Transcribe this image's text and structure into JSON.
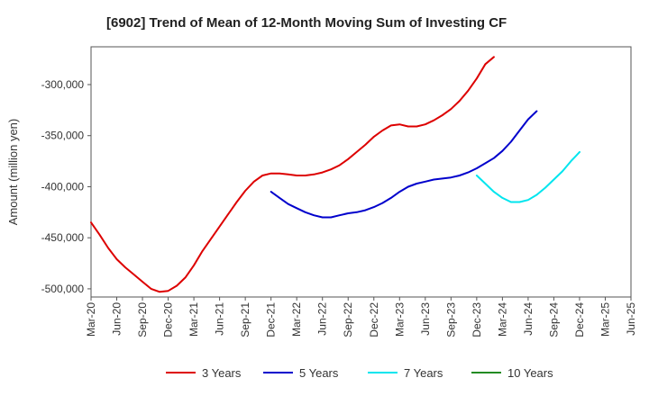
{
  "chart_data": {
    "type": "line",
    "title": "[6902]  Trend of Mean of 12-Month Moving Sum of Investing CF",
    "xlabel": "",
    "ylabel": "Amount (million yen)",
    "ylim": [
      -508000,
      -263000
    ],
    "yticks": [
      -500000,
      -450000,
      -400000,
      -350000,
      -300000
    ],
    "ytick_labels": [
      "-500,000",
      "-450,000",
      "-400,000",
      "-350,000",
      "-300,000"
    ],
    "x_start": "Mar-20",
    "x_ticks": [
      "Mar-20",
      "Jun-20",
      "Sep-20",
      "Dec-20",
      "Mar-21",
      "Jun-21",
      "Sep-21",
      "Dec-21",
      "Mar-22",
      "Jun-22",
      "Sep-22",
      "Dec-22",
      "Mar-23",
      "Jun-23",
      "Sep-23",
      "Dec-23",
      "Mar-24",
      "Jun-24",
      "Sep-24",
      "Dec-24",
      "Mar-25",
      "Jun-25"
    ],
    "grid": true,
    "legend_position": "bottom",
    "series": [
      {
        "name": "3 Years",
        "color": "#dd0000",
        "start_month": 0,
        "values": [
          -435000,
          -447000,
          -460000,
          -471000,
          -479000,
          -486000,
          -493000,
          -500000,
          -503000,
          -502000,
          -497000,
          -489000,
          -477000,
          -463000,
          -451000,
          -439000,
          -427000,
          -415000,
          -404000,
          -395000,
          -389000,
          -387000,
          -387000,
          -388000,
          -389000,
          -389000,
          -388000,
          -386000,
          -383000,
          -379000,
          -373000,
          -366000,
          -359000,
          -351000,
          -345000,
          -340000,
          -339000,
          -341000,
          -341000,
          -339000,
          -335000,
          -330000,
          -324000,
          -316000,
          -306000,
          -294000,
          -280000,
          -273000
        ]
      },
      {
        "name": "5 Years",
        "color": "#0000cc",
        "start_month": 21,
        "values": [
          -405000,
          -411000,
          -417000,
          -421000,
          -425000,
          -428000,
          -430000,
          -430000,
          -428000,
          -426000,
          -425000,
          -423000,
          -420000,
          -416000,
          -411000,
          -405000,
          -400000,
          -397000,
          -395000,
          -393000,
          -392000,
          -391000,
          -389000,
          -386000,
          -382000,
          -377000,
          -372000,
          -365000,
          -356000,
          -345000,
          -334000,
          -326000
        ]
      },
      {
        "name": "7 Years",
        "color": "#00e5ee",
        "start_month": 45,
        "values": [
          -389000,
          -397000,
          -405000,
          -411000,
          -415000,
          -415000,
          -413000,
          -408000,
          -401000,
          -393000,
          -385000,
          -375000,
          -366000
        ]
      },
      {
        "name": "10 Years",
        "color": "#228b22",
        "start_month": 0,
        "values": []
      }
    ]
  }
}
